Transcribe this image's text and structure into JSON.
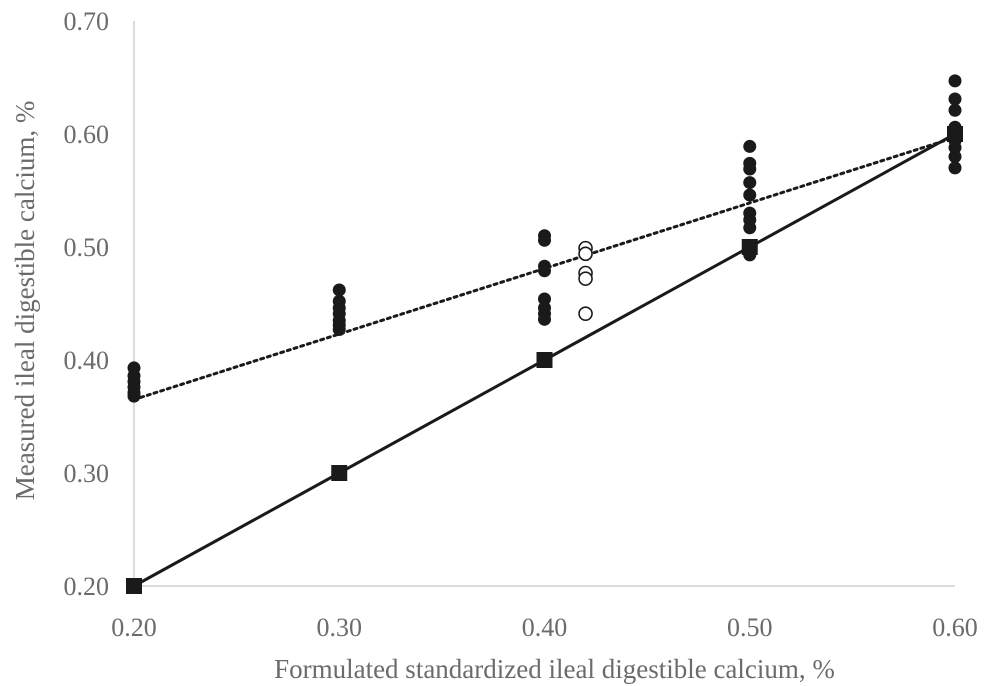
{
  "chart_data": {
    "type": "scatter",
    "title": "",
    "xlabel": "Formulated standardized ileal digestible calcium, %",
    "ylabel": "Measured ileal digestible calcium, %",
    "xlim": [
      0.2,
      0.6
    ],
    "ylim": [
      0.2,
      0.7
    ],
    "x_ticks": [
      "0.20",
      "0.30",
      "0.40",
      "0.50",
      "0.60"
    ],
    "y_ticks": [
      "0.20",
      "0.30",
      "0.40",
      "0.50",
      "0.60",
      "0.70"
    ],
    "grid": false,
    "legend": "none",
    "series": [
      {
        "marker": "filled-circle",
        "color": "#1a1a1a",
        "points": [
          [
            0.2,
            0.393
          ],
          [
            0.2,
            0.386
          ],
          [
            0.2,
            0.381
          ],
          [
            0.2,
            0.376
          ],
          [
            0.2,
            0.371
          ],
          [
            0.2,
            0.368
          ],
          [
            0.3,
            0.462
          ],
          [
            0.3,
            0.452
          ],
          [
            0.3,
            0.446
          ],
          [
            0.3,
            0.441
          ],
          [
            0.3,
            0.435
          ],
          [
            0.3,
            0.431
          ],
          [
            0.3,
            0.427
          ],
          [
            0.4,
            0.51
          ],
          [
            0.4,
            0.506
          ],
          [
            0.4,
            0.483
          ],
          [
            0.4,
            0.479
          ],
          [
            0.4,
            0.454
          ],
          [
            0.4,
            0.446
          ],
          [
            0.4,
            0.441
          ],
          [
            0.4,
            0.436
          ],
          [
            0.5,
            0.589
          ],
          [
            0.5,
            0.574
          ],
          [
            0.5,
            0.569
          ],
          [
            0.5,
            0.557
          ],
          [
            0.5,
            0.546
          ],
          [
            0.5,
            0.53
          ],
          [
            0.5,
            0.524
          ],
          [
            0.5,
            0.517
          ],
          [
            0.5,
            0.497
          ],
          [
            0.5,
            0.493
          ],
          [
            0.6,
            0.647
          ],
          [
            0.6,
            0.631
          ],
          [
            0.6,
            0.621
          ],
          [
            0.6,
            0.606
          ],
          [
            0.6,
            0.6
          ],
          [
            0.6,
            0.594
          ],
          [
            0.6,
            0.588
          ],
          [
            0.6,
            0.58
          ],
          [
            0.6,
            0.57
          ]
        ]
      },
      {
        "marker": "open-circle",
        "color": "#1a1a1a",
        "points": [
          [
            0.42,
            0.499
          ],
          [
            0.42,
            0.494
          ],
          [
            0.42,
            0.477
          ],
          [
            0.42,
            0.472
          ],
          [
            0.42,
            0.441
          ]
        ]
      },
      {
        "marker": "square",
        "color": "#1a1a1a",
        "line": "solid",
        "points": [
          [
            0.2,
            0.2
          ],
          [
            0.3,
            0.3
          ],
          [
            0.4,
            0.4
          ],
          [
            0.5,
            0.5
          ],
          [
            0.6,
            0.6
          ]
        ]
      }
    ],
    "trendline": {
      "style": "dotted",
      "color": "#1a1a1a",
      "points": [
        [
          0.2,
          0.365
        ],
        [
          0.6,
          0.597
        ]
      ]
    }
  }
}
